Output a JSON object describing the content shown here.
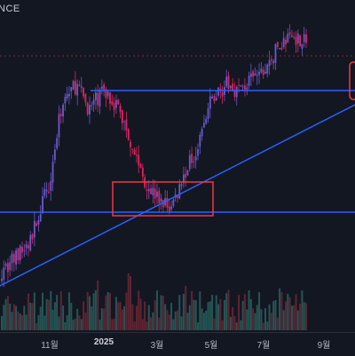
{
  "header": {
    "symbol_fragment": "NCE"
  },
  "colors": {
    "background": "#131722",
    "up_candle": "#6a5acd",
    "down_candle": "#e0245e",
    "line_blue": "#2962ff",
    "box_red": "#f23645",
    "price_line": "#f23645"
  },
  "chart_data": {
    "type": "candlestick",
    "title": "",
    "xlabel": "",
    "ylabel": "",
    "x_ticks": [
      {
        "label": "11월",
        "bold": false
      },
      {
        "label": "2025",
        "bold": true
      },
      {
        "label": "3월",
        "bold": false
      },
      {
        "label": "5월",
        "bold": false
      },
      {
        "label": "7월",
        "bold": false
      },
      {
        "label": "9월",
        "bold": false
      }
    ],
    "price_path_shape": [
      [
        0.0,
        0.05
      ],
      [
        0.08,
        0.15
      ],
      [
        0.14,
        0.4
      ],
      [
        0.18,
        0.74
      ],
      [
        0.22,
        0.8
      ],
      [
        0.26,
        0.7
      ],
      [
        0.3,
        0.78
      ],
      [
        0.34,
        0.72
      ],
      [
        0.38,
        0.58
      ],
      [
        0.42,
        0.42
      ],
      [
        0.46,
        0.34
      ],
      [
        0.5,
        0.3
      ],
      [
        0.54,
        0.44
      ],
      [
        0.58,
        0.56
      ],
      [
        0.62,
        0.74
      ],
      [
        0.66,
        0.8
      ],
      [
        0.7,
        0.78
      ],
      [
        0.74,
        0.82
      ],
      [
        0.78,
        0.86
      ],
      [
        0.82,
        0.96
      ],
      [
        0.86,
        1.0
      ],
      [
        0.9,
        0.98
      ]
    ],
    "annotations": {
      "horizontal_levels": [
        "upper_resistance",
        "lower_support"
      ],
      "trendline": "rising",
      "boxes": [
        "support_zone_box",
        "right_edge_box"
      ]
    },
    "volume": "shown"
  }
}
